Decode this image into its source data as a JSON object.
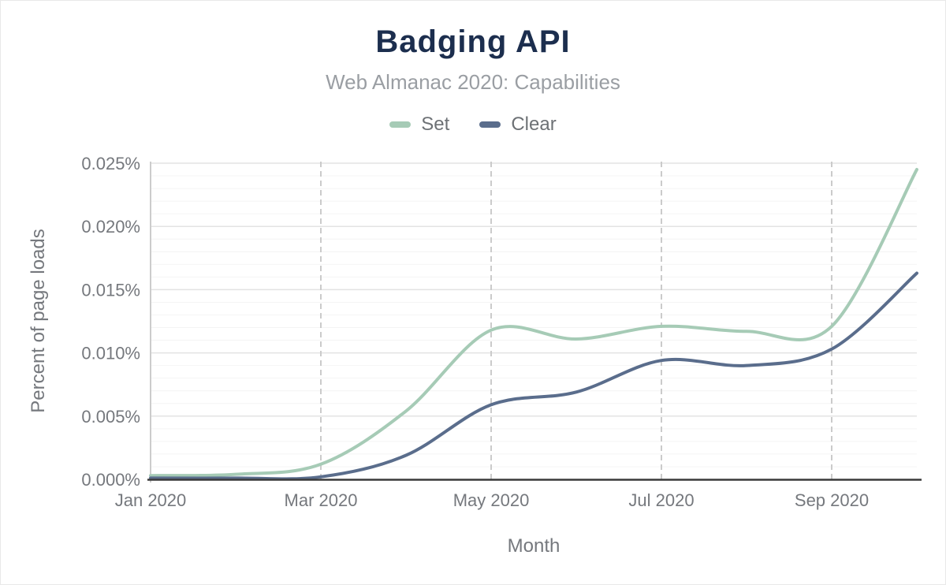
{
  "chart_data": {
    "type": "line",
    "title": "Badging API",
    "subtitle": "Web Almanac 2020: Capabilities",
    "xlabel": "Month",
    "ylabel": "Percent of page loads",
    "unit": "percent of page loads",
    "x": [
      "Jan 2020",
      "Feb 2020",
      "Mar 2020",
      "Apr 2020",
      "May 2020",
      "Jun 2020",
      "Jul 2020",
      "Aug 2020",
      "Sep 2020",
      "Oct 2020"
    ],
    "series": [
      {
        "name": "Set",
        "color": "#a6cbb6",
        "values": [
          0.0003,
          0.0004,
          0.0012,
          0.0054,
          0.0118,
          0.0111,
          0.0121,
          0.0117,
          0.0121,
          0.0245
        ]
      },
      {
        "name": "Clear",
        "color": "#5a6d8c",
        "values": [
          0.0001,
          0.0001,
          0.0002,
          0.0019,
          0.0059,
          0.0069,
          0.0094,
          0.009,
          0.0103,
          0.0163
        ]
      }
    ],
    "ylim": [
      0,
      0.025
    ],
    "y_ticks": [
      0,
      0.005,
      0.01,
      0.015,
      0.02,
      0.025
    ],
    "y_tick_labels": [
      "0.000%",
      "0.005%",
      "0.010%",
      "0.015%",
      "0.020%",
      "0.025%"
    ],
    "y_minor_step": 0.001,
    "x_tick_indices": [
      0,
      2,
      4,
      6,
      8
    ],
    "x_tick_labels": [
      "Jan 2020",
      "Mar 2020",
      "May 2020",
      "Jul 2020",
      "Sep 2020"
    ],
    "grid": "major+minor horizontal, dashed vertical at labeled months except Jan",
    "legend_position": "top",
    "smooth": true
  },
  "style": {
    "title_color": "#1c2e4e",
    "subtitle_color": "#9a9ea3",
    "tick_label_color": "#75787d",
    "legend_text_color": "#6d7175",
    "major_grid_color": "#e3e3e3",
    "minor_grid_color": "#f4f4f4",
    "dashed_grid_color": "#cbcbcb",
    "x_axis_color": "#3a3a3a",
    "y_axis_color": "#cccccc",
    "background": "#ffffff"
  }
}
